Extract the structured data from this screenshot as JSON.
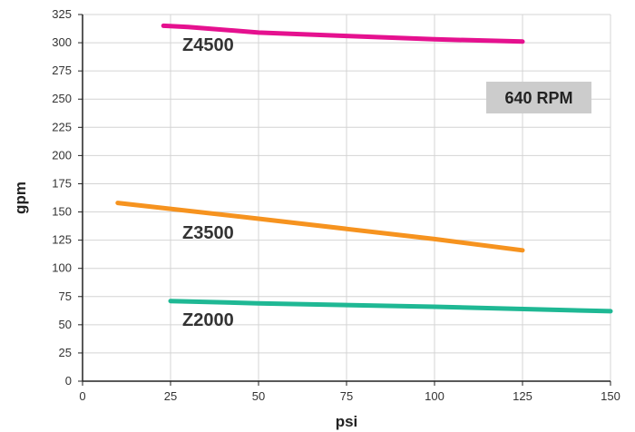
{
  "chart_data": {
    "type": "line",
    "xlabel": "psi",
    "ylabel": "gpm",
    "xlim": [
      0,
      150
    ],
    "ylim": [
      0,
      325
    ],
    "x_ticks": [
      "0",
      "25",
      "50",
      "75",
      "100",
      "125",
      "150"
    ],
    "y_ticks": [
      "0",
      "25",
      "50",
      "75",
      "100",
      "125",
      "150",
      "175",
      "200",
      "225",
      "250",
      "275",
      "300",
      "325"
    ],
    "grid": true,
    "annotation": "640 RPM",
    "series": [
      {
        "name": "Z4500",
        "color": "#e5118f",
        "points": [
          [
            23,
            315
          ],
          [
            30,
            314
          ],
          [
            50,
            309
          ],
          [
            75,
            306
          ],
          [
            100,
            303
          ],
          [
            125,
            301
          ]
        ]
      },
      {
        "name": "Z3500",
        "color": "#f6931f",
        "points": [
          [
            10,
            158
          ],
          [
            50,
            144
          ],
          [
            100,
            126
          ],
          [
            125,
            116
          ]
        ]
      },
      {
        "name": "Z2000",
        "color": "#1fb894",
        "points": [
          [
            25,
            71
          ],
          [
            50,
            69
          ],
          [
            100,
            66
          ],
          [
            150,
            62
          ]
        ]
      }
    ]
  }
}
